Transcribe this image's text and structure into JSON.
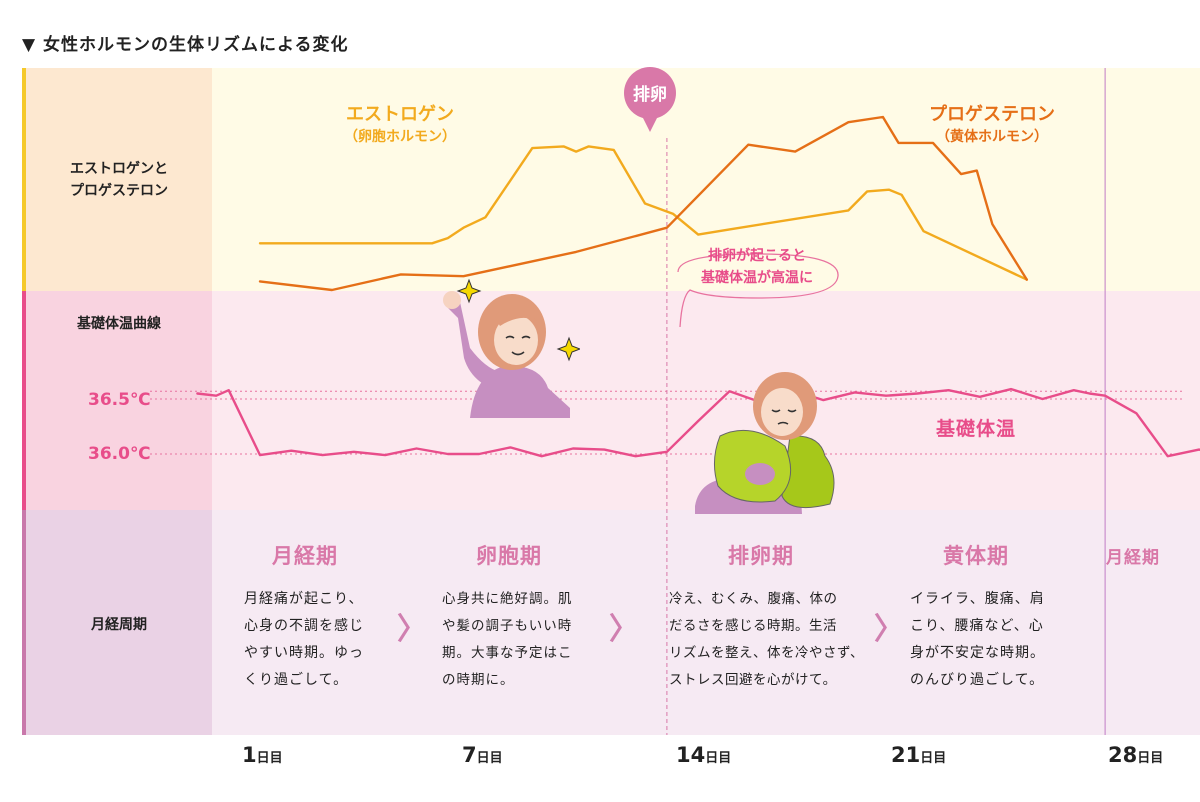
{
  "title": "▼ 女性ホルモンの生体リズムによる変化",
  "rows": {
    "hormones_label": [
      "エストロゲンと",
      "プロゲステロン"
    ],
    "bbt_label": "基礎体温曲線",
    "cycle_label": "月経周期"
  },
  "colors": {
    "estrogen": "#f2aa1e",
    "progesterone": "#e56f17",
    "bbt": "#e84d8a",
    "ovulation": "#d978a8",
    "band_hormone": "#fffbe6",
    "band_bbt": "#fce9ef",
    "band_cycle": "#f6eaf3"
  },
  "chart_data": {
    "type": "line",
    "x_unit": "day",
    "x_ticks": [
      {
        "day": 1,
        "num": "1",
        "unit": "日目"
      },
      {
        "day": 7,
        "num": "7",
        "unit": "日目"
      },
      {
        "day": 14,
        "num": "14",
        "unit": "日目"
      },
      {
        "day": 21,
        "num": "21",
        "unit": "日目"
      },
      {
        "day": 28,
        "num": "28",
        "unit": "日目"
      }
    ],
    "ovulation_day": 14,
    "cycle_end_day": 28,
    "temperature_ticks": [
      "36.5℃",
      "36.0℃"
    ],
    "temperature_ylim": [
      35.9,
      36.9
    ],
    "series": [
      {
        "name": "エストロゲン",
        "subname": "（卵胞ホルモン）",
        "points": [
          [
            1,
            2.7
          ],
          [
            6.5,
            2.7
          ],
          [
            7,
            3.0
          ],
          [
            7.5,
            3.6
          ],
          [
            8.2,
            4.2
          ],
          [
            9.7,
            8.2
          ],
          [
            10.7,
            8.3
          ],
          [
            11.1,
            8.0
          ],
          [
            11.5,
            8.3
          ],
          [
            12.3,
            8.1
          ],
          [
            13.3,
            5.0
          ],
          [
            14.2,
            4.4
          ],
          [
            15,
            3.2
          ],
          [
            16,
            3.5
          ],
          [
            19.8,
            4.6
          ],
          [
            20.4,
            5.7
          ],
          [
            21.1,
            5.8
          ],
          [
            21.5,
            5.5
          ],
          [
            22.2,
            3.4
          ],
          [
            25.5,
            0.6
          ]
        ]
      },
      {
        "name": "プロゲステロン",
        "subname": "（黄体ホルモン）",
        "points": [
          [
            1,
            0.5
          ],
          [
            3.3,
            0.0
          ],
          [
            5.5,
            0.9
          ],
          [
            7.5,
            0.8
          ],
          [
            11.1,
            2.2
          ],
          [
            14,
            3.6
          ],
          [
            15.3,
            6.0
          ],
          [
            16.6,
            8.4
          ],
          [
            18.1,
            8.0
          ],
          [
            19.8,
            9.7
          ],
          [
            20.9,
            10.0
          ],
          [
            21.4,
            8.5
          ],
          [
            22.5,
            8.5
          ],
          [
            23.4,
            6.7
          ],
          [
            23.9,
            6.9
          ],
          [
            24.4,
            3.8
          ],
          [
            25.5,
            0.6
          ]
        ]
      },
      {
        "name": "基礎体温",
        "points": [
          [
            -1.0,
            36.55
          ],
          [
            -0.4,
            36.53
          ],
          [
            0.0,
            36.58
          ],
          [
            1.0,
            35.99
          ],
          [
            2.0,
            36.03
          ],
          [
            3.0,
            35.99
          ],
          [
            4.0,
            36.02
          ],
          [
            5.0,
            35.99
          ],
          [
            6.0,
            36.05
          ],
          [
            7.0,
            36.0
          ],
          [
            8.0,
            36.0
          ],
          [
            9.0,
            36.06
          ],
          [
            10.0,
            35.98
          ],
          [
            11.0,
            36.05
          ],
          [
            12.0,
            36.04
          ],
          [
            13.0,
            35.98
          ],
          [
            14.0,
            36.02
          ],
          [
            15.0,
            36.3
          ],
          [
            16.0,
            36.57
          ],
          [
            17.0,
            36.47
          ],
          [
            18.0,
            36.58
          ],
          [
            19.0,
            36.49
          ],
          [
            20.0,
            36.56
          ],
          [
            21.0,
            36.53
          ],
          [
            22.0,
            36.55
          ],
          [
            23.0,
            36.58
          ],
          [
            24.0,
            36.52
          ],
          [
            25.0,
            36.59
          ],
          [
            26.0,
            36.5
          ],
          [
            27.0,
            36.58
          ],
          [
            27.5,
            36.55
          ],
          [
            28.0,
            36.53
          ],
          [
            29.0,
            36.37
          ],
          [
            30.0,
            35.98
          ],
          [
            31.0,
            36.04
          ],
          [
            32.0,
            35.99
          ],
          [
            33.0,
            36.05
          ]
        ]
      }
    ]
  },
  "annotations": {
    "ovulation": "排卵",
    "bbt_note": [
      "排卵が起こると",
      "基礎体温が高温に"
    ],
    "bbt_series_label": "基礎体温"
  },
  "phases": [
    {
      "name": "月経期",
      "desc": [
        "月経痛が起こり、",
        "心身の不調を感じ",
        "やすい時期。ゆっ",
        "くり過ごして。"
      ]
    },
    {
      "name": "卵胞期",
      "desc": [
        "心身共に絶好調。肌",
        "や髪の調子もいい時",
        "期。大事な予定はこ",
        "の時期に。"
      ]
    },
    {
      "name": "排卵期",
      "desc": [
        "冷え、むくみ、腹痛、体の",
        "だるさを感じる時期。生活",
        "リズムを整え、体を冷やさず、",
        "ストレス回避を心がけて。"
      ]
    },
    {
      "name": "黄体期",
      "desc": [
        "イライラ、腹痛、肩",
        "こり、腰痛など、心",
        "身が不安定な時期。",
        "のんびり過ごして。"
      ]
    },
    {
      "name": "月経期"
    }
  ],
  "arrow_glyph": "〉",
  "icons": [
    "sparkle-icon",
    "happy-woman-icon",
    "tired-woman-with-pillow-icon"
  ]
}
